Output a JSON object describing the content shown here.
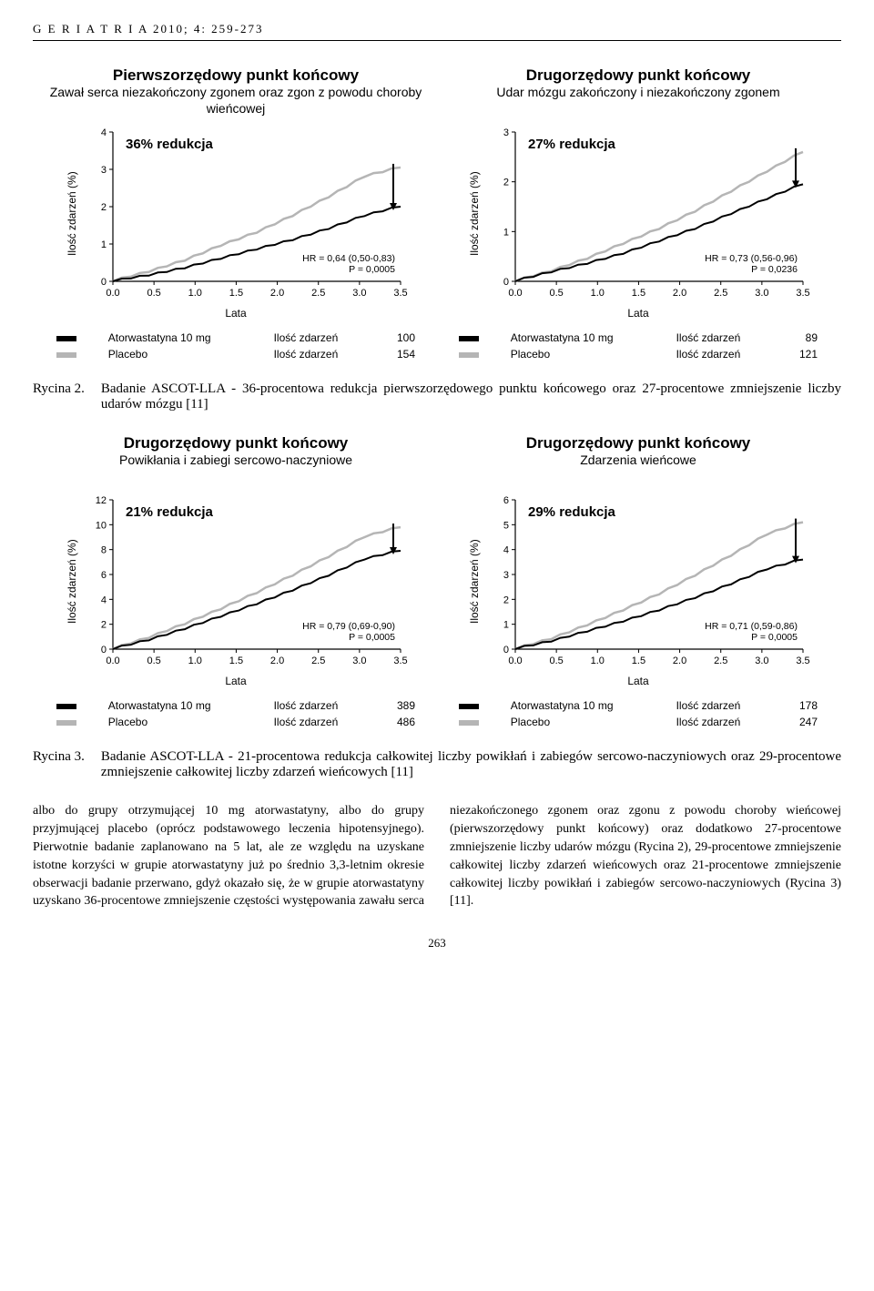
{
  "running_head": "G E R I A T R I A  2010; 4: 259-273",
  "page_number": "263",
  "colors": {
    "placebo": "#b5b5b5",
    "treatment": "#000000",
    "axis": "#000000",
    "arrow": "#000000"
  },
  "fig2": {
    "caption_label": "Rycina 2.",
    "caption_text": "Badanie ASCOT-LLA - 36-procentowa redukcja pierwszorzędowego punktu końcowego oraz 27-procentowe zmniejszenie liczby udarów mózgu [11]",
    "left": {
      "title": "Pierwszorzędowy punkt końcowy",
      "subtitle": "Zawał serca niezakończony zgonem oraz zgon z powodu choroby wieńcowej",
      "reduction": "36% redukcja",
      "hr_line1": "HR = 0,64 (0,50-0,83)",
      "hr_line2": "P = 0,0005",
      "y_label": "Ilość zdarzeń (%)",
      "x_label": "Lata",
      "y_max": 4,
      "y_ticks": [
        0,
        1,
        2,
        3,
        4
      ],
      "x_ticks": [
        "0.0",
        "0.5",
        "1.0",
        "1.5",
        "2.0",
        "2.5",
        "3.0",
        "3.5"
      ],
      "placebo_series": [
        0,
        0.25,
        0.55,
        0.95,
        1.3,
        1.75,
        2.25,
        2.8,
        3.05
      ],
      "treatment_series": [
        0,
        0.15,
        0.35,
        0.6,
        0.85,
        1.1,
        1.4,
        1.75,
        2.0
      ],
      "legend": {
        "row1": {
          "name": "Atorwastatyna 10 mg",
          "label": "Ilość zdarzeń",
          "count": "100"
        },
        "row2": {
          "name": "Placebo",
          "label": "Ilość zdarzeń",
          "count": "154"
        }
      }
    },
    "right": {
      "title": "Drugorzędowy punkt końcowy",
      "subtitle": "Udar mózgu zakończony i niezakończony zgonem",
      "reduction": "27% redukcja",
      "hr_line1": "HR = 0,73 (0,56-0,96)",
      "hr_line2": "P = 0,0236",
      "y_label": "Ilość zdarzeń (%)",
      "x_label": "Lata",
      "y_max": 3,
      "y_ticks": [
        0,
        1,
        2,
        3
      ],
      "x_ticks": [
        "0.0",
        "0.5",
        "1.0",
        "1.5",
        "2.0",
        "2.5",
        "3.0",
        "3.5"
      ],
      "placebo_series": [
        0,
        0.2,
        0.45,
        0.75,
        1.05,
        1.4,
        1.8,
        2.2,
        2.6
      ],
      "treatment_series": [
        0,
        0.18,
        0.35,
        0.55,
        0.8,
        1.05,
        1.35,
        1.65,
        1.95
      ],
      "legend": {
        "row1": {
          "name": "Atorwastatyna 10 mg",
          "label": "Ilość zdarzeń",
          "count": "89"
        },
        "row2": {
          "name": "Placebo",
          "label": "Ilość zdarzeń",
          "count": "121"
        }
      }
    }
  },
  "fig3": {
    "caption_label": "Rycina 3.",
    "caption_text": "Badanie ASCOT-LLA - 21-procentowa redukcja całkowitej liczby powikłań i zabiegów sercowo-naczyniowych oraz 29-procentowe zmniejszenie całkowitej liczby zdarzeń wieńcowych [11]",
    "left": {
      "title": "Drugorzędowy punkt końcowy",
      "subtitle": "Powikłania i zabiegi sercowo-naczyniowe",
      "reduction": "21% redukcja",
      "hr_line1": "HR = 0,79 (0,69-0,90)",
      "hr_line2": "P = 0,0005",
      "y_label": "Ilość zdarzeń (%)",
      "x_label": "Lata",
      "y_max": 12,
      "y_ticks": [
        0,
        2,
        4,
        6,
        8,
        10,
        12
      ],
      "x_ticks": [
        "0.0",
        "0.5",
        "1.0",
        "1.5",
        "2.0",
        "2.5",
        "3.0",
        "3.5"
      ],
      "placebo_series": [
        0,
        0.9,
        2.0,
        3.2,
        4.5,
        5.9,
        7.4,
        9.0,
        9.8
      ],
      "treatment_series": [
        0,
        0.7,
        1.6,
        2.6,
        3.6,
        4.7,
        5.9,
        7.2,
        7.9
      ],
      "legend": {
        "row1": {
          "name": "Atorwastatyna 10 mg",
          "label": "Ilość zdarzeń",
          "count": "389"
        },
        "row2": {
          "name": "Placebo",
          "label": "Ilość zdarzeń",
          "count": "486"
        }
      }
    },
    "right": {
      "title": "Drugorzędowy punkt końcowy",
      "subtitle": "Zdarzenia wieńcowe",
      "reduction": "29% redukcja",
      "hr_line1": "HR = 0,71 (0,59-0,86)",
      "hr_line2": "P = 0,0005",
      "y_label": "Ilość zdarzeń (%)",
      "x_label": "Lata",
      "y_max": 6,
      "y_ticks": [
        0,
        1,
        2,
        3,
        4,
        5,
        6
      ],
      "x_ticks": [
        "0.0",
        "0.5",
        "1.0",
        "1.5",
        "2.0",
        "2.5",
        "3.0",
        "3.5"
      ],
      "placebo_series": [
        0,
        0.4,
        0.95,
        1.55,
        2.2,
        2.95,
        3.75,
        4.6,
        5.1
      ],
      "treatment_series": [
        0,
        0.3,
        0.7,
        1.1,
        1.55,
        2.05,
        2.6,
        3.2,
        3.6
      ],
      "legend": {
        "row1": {
          "name": "Atorwastatyna 10 mg",
          "label": "Ilość zdarzeń",
          "count": "178"
        },
        "row2": {
          "name": "Placebo",
          "label": "Ilość zdarzeń",
          "count": "247"
        }
      }
    }
  },
  "body_text_left": "albo do grupy otrzymującej 10 mg atorwastatyny, albo do grupy przyjmującej placebo (oprócz podstawowego leczenia hipotensyjnego). Pierwotnie badanie zaplanowano na 5 lat, ale ze względu na uzyskane istotne korzyści w grupie atorwastatyny już po średnio 3,3-letnim okresie obserwacji badanie przerwano, gdyż okazało się, że w grupie atorwastatyny uzyskano 36-procentowe zmniejszenie częstości występowania",
  "body_text_right": "zawału serca niezakończonego zgonem oraz zgonu z powodu choroby wieńcowej (pierwszorzędowy punkt końcowy) oraz dodatkowo 27-procentowe zmniejszenie liczby udarów mózgu (Rycina 2), 29-procentowe zmniejszenie całkowitej liczby zdarzeń wieńcowych oraz 21-procentowe zmniejszenie całkowitej liczby powikłań i zabiegów sercowo-naczyniowych (Rycina 3) [11]."
}
